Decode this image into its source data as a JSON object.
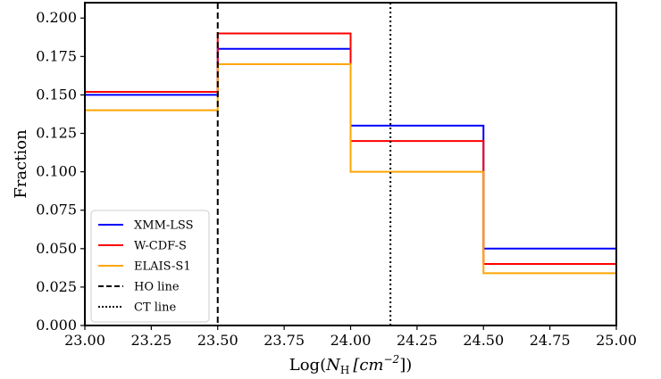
{
  "chart_data": {
    "type": "line",
    "step": true,
    "xlabel_prefix": "Log(",
    "xlabel_symbol": "N",
    "xlabel_sub": "H",
    "xlabel_unit": "[cm",
    "xlabel_exp": "−2",
    "xlabel_suffix": "])",
    "ylabel": "Fraction",
    "xlim": [
      23.0,
      25.0
    ],
    "ylim": [
      0.0,
      0.21
    ],
    "xticks": [
      "23.00",
      "23.25",
      "23.50",
      "23.75",
      "24.00",
      "24.25",
      "24.50",
      "24.75",
      "25.00"
    ],
    "yticks": [
      "0.000",
      "0.025",
      "0.050",
      "0.075",
      "0.100",
      "0.125",
      "0.150",
      "0.175",
      "0.200"
    ],
    "bin_edges": [
      23.0,
      23.5,
      24.0,
      24.5,
      25.0
    ],
    "series": [
      {
        "name": "XMM-LSS",
        "color": "#0000ff",
        "values": [
          0.15,
          0.18,
          0.13,
          0.05
        ]
      },
      {
        "name": "W-CDF-S",
        "color": "#ff0000",
        "values": [
          0.152,
          0.19,
          0.12,
          0.04
        ]
      },
      {
        "name": "ELAIS-S1",
        "color": "#ffa500",
        "values": [
          0.14,
          0.17,
          0.1,
          0.034
        ]
      }
    ],
    "vlines": [
      {
        "name": "HO line",
        "x": 23.5,
        "style": "dashed",
        "color": "#000000"
      },
      {
        "name": "CT line",
        "x": 24.15,
        "style": "dotted",
        "color": "#000000"
      }
    ],
    "legend_position": "lower-left",
    "grid": false
  }
}
